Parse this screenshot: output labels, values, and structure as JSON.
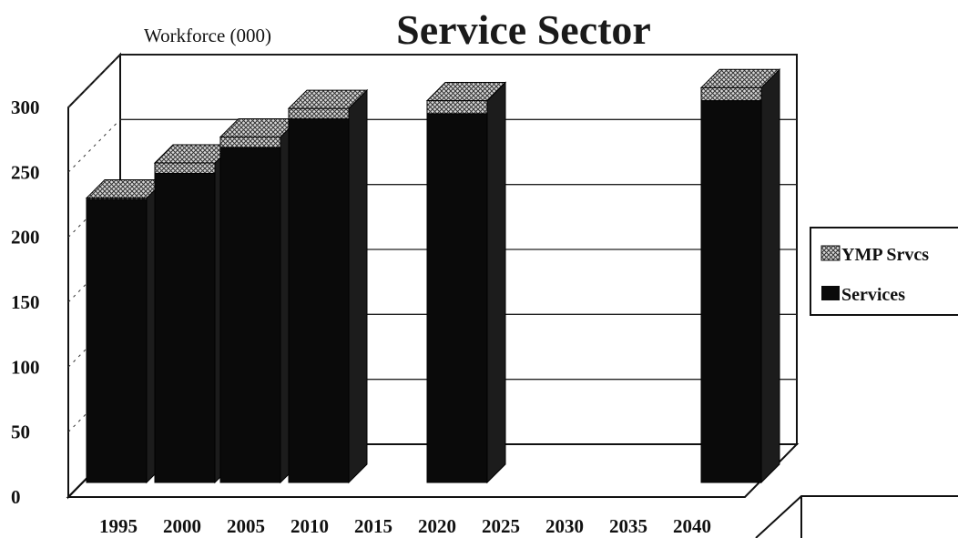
{
  "chart_data": {
    "type": "bar",
    "title": "Service Sector",
    "ylabel": "Workforce (000)",
    "xlabel": "",
    "categories": [
      "1995",
      "2000",
      "2005",
      "2010",
      "2015",
      "2020",
      "2025",
      "2030",
      "2035",
      "2040"
    ],
    "series": [
      {
        "name": "Services",
        "values": [
          218,
          238,
          258,
          280,
          null,
          284,
          null,
          null,
          null,
          294
        ],
        "color": "#0a0a0a"
      },
      {
        "name": "YMP Srvcs",
        "values": [
          1,
          8,
          8,
          8,
          null,
          10,
          null,
          null,
          null,
          10
        ],
        "color": "#bdbdbd"
      }
    ],
    "stacked": true,
    "yticks": [
      "0",
      "50",
      "100",
      "150",
      "200",
      "250",
      "300"
    ],
    "ylim": [
      0,
      300
    ],
    "grid": true,
    "legend": "right",
    "three_d": true
  }
}
